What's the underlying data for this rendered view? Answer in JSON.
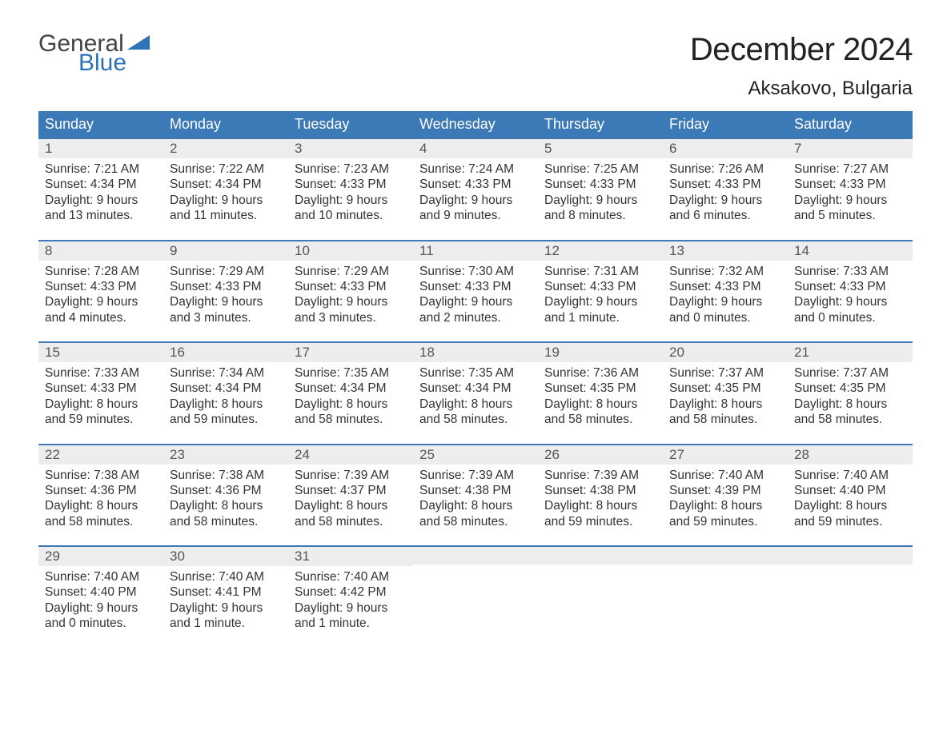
{
  "brand": {
    "word1": "General",
    "word2": "Blue",
    "accent_color": "#2e72b8"
  },
  "title": "December 2024",
  "location": "Aksakovo, Bulgaria",
  "colors": {
    "header_bg": "#3b79b7",
    "header_text": "#ffffff",
    "datebar_bg": "#ededed",
    "border": "#3b79b7",
    "body_text": "#333333"
  },
  "day_names": [
    "Sunday",
    "Monday",
    "Tuesday",
    "Wednesday",
    "Thursday",
    "Friday",
    "Saturday"
  ],
  "weeks": [
    [
      {
        "date": "1",
        "sunrise": "Sunrise: 7:21 AM",
        "sunset": "Sunset: 4:34 PM",
        "d1": "Daylight: 9 hours",
        "d2": "and 13 minutes."
      },
      {
        "date": "2",
        "sunrise": "Sunrise: 7:22 AM",
        "sunset": "Sunset: 4:34 PM",
        "d1": "Daylight: 9 hours",
        "d2": "and 11 minutes."
      },
      {
        "date": "3",
        "sunrise": "Sunrise: 7:23 AM",
        "sunset": "Sunset: 4:33 PM",
        "d1": "Daylight: 9 hours",
        "d2": "and 10 minutes."
      },
      {
        "date": "4",
        "sunrise": "Sunrise: 7:24 AM",
        "sunset": "Sunset: 4:33 PM",
        "d1": "Daylight: 9 hours",
        "d2": "and 9 minutes."
      },
      {
        "date": "5",
        "sunrise": "Sunrise: 7:25 AM",
        "sunset": "Sunset: 4:33 PM",
        "d1": "Daylight: 9 hours",
        "d2": "and 8 minutes."
      },
      {
        "date": "6",
        "sunrise": "Sunrise: 7:26 AM",
        "sunset": "Sunset: 4:33 PM",
        "d1": "Daylight: 9 hours",
        "d2": "and 6 minutes."
      },
      {
        "date": "7",
        "sunrise": "Sunrise: 7:27 AM",
        "sunset": "Sunset: 4:33 PM",
        "d1": "Daylight: 9 hours",
        "d2": "and 5 minutes."
      }
    ],
    [
      {
        "date": "8",
        "sunrise": "Sunrise: 7:28 AM",
        "sunset": "Sunset: 4:33 PM",
        "d1": "Daylight: 9 hours",
        "d2": "and 4 minutes."
      },
      {
        "date": "9",
        "sunrise": "Sunrise: 7:29 AM",
        "sunset": "Sunset: 4:33 PM",
        "d1": "Daylight: 9 hours",
        "d2": "and 3 minutes."
      },
      {
        "date": "10",
        "sunrise": "Sunrise: 7:29 AM",
        "sunset": "Sunset: 4:33 PM",
        "d1": "Daylight: 9 hours",
        "d2": "and 3 minutes."
      },
      {
        "date": "11",
        "sunrise": "Sunrise: 7:30 AM",
        "sunset": "Sunset: 4:33 PM",
        "d1": "Daylight: 9 hours",
        "d2": "and 2 minutes."
      },
      {
        "date": "12",
        "sunrise": "Sunrise: 7:31 AM",
        "sunset": "Sunset: 4:33 PM",
        "d1": "Daylight: 9 hours",
        "d2": "and 1 minute."
      },
      {
        "date": "13",
        "sunrise": "Sunrise: 7:32 AM",
        "sunset": "Sunset: 4:33 PM",
        "d1": "Daylight: 9 hours",
        "d2": "and 0 minutes."
      },
      {
        "date": "14",
        "sunrise": "Sunrise: 7:33 AM",
        "sunset": "Sunset: 4:33 PM",
        "d1": "Daylight: 9 hours",
        "d2": "and 0 minutes."
      }
    ],
    [
      {
        "date": "15",
        "sunrise": "Sunrise: 7:33 AM",
        "sunset": "Sunset: 4:33 PM",
        "d1": "Daylight: 8 hours",
        "d2": "and 59 minutes."
      },
      {
        "date": "16",
        "sunrise": "Sunrise: 7:34 AM",
        "sunset": "Sunset: 4:34 PM",
        "d1": "Daylight: 8 hours",
        "d2": "and 59 minutes."
      },
      {
        "date": "17",
        "sunrise": "Sunrise: 7:35 AM",
        "sunset": "Sunset: 4:34 PM",
        "d1": "Daylight: 8 hours",
        "d2": "and 58 minutes."
      },
      {
        "date": "18",
        "sunrise": "Sunrise: 7:35 AM",
        "sunset": "Sunset: 4:34 PM",
        "d1": "Daylight: 8 hours",
        "d2": "and 58 minutes."
      },
      {
        "date": "19",
        "sunrise": "Sunrise: 7:36 AM",
        "sunset": "Sunset: 4:35 PM",
        "d1": "Daylight: 8 hours",
        "d2": "and 58 minutes."
      },
      {
        "date": "20",
        "sunrise": "Sunrise: 7:37 AM",
        "sunset": "Sunset: 4:35 PM",
        "d1": "Daylight: 8 hours",
        "d2": "and 58 minutes."
      },
      {
        "date": "21",
        "sunrise": "Sunrise: 7:37 AM",
        "sunset": "Sunset: 4:35 PM",
        "d1": "Daylight: 8 hours",
        "d2": "and 58 minutes."
      }
    ],
    [
      {
        "date": "22",
        "sunrise": "Sunrise: 7:38 AM",
        "sunset": "Sunset: 4:36 PM",
        "d1": "Daylight: 8 hours",
        "d2": "and 58 minutes."
      },
      {
        "date": "23",
        "sunrise": "Sunrise: 7:38 AM",
        "sunset": "Sunset: 4:36 PM",
        "d1": "Daylight: 8 hours",
        "d2": "and 58 minutes."
      },
      {
        "date": "24",
        "sunrise": "Sunrise: 7:39 AM",
        "sunset": "Sunset: 4:37 PM",
        "d1": "Daylight: 8 hours",
        "d2": "and 58 minutes."
      },
      {
        "date": "25",
        "sunrise": "Sunrise: 7:39 AM",
        "sunset": "Sunset: 4:38 PM",
        "d1": "Daylight: 8 hours",
        "d2": "and 58 minutes."
      },
      {
        "date": "26",
        "sunrise": "Sunrise: 7:39 AM",
        "sunset": "Sunset: 4:38 PM",
        "d1": "Daylight: 8 hours",
        "d2": "and 59 minutes."
      },
      {
        "date": "27",
        "sunrise": "Sunrise: 7:40 AM",
        "sunset": "Sunset: 4:39 PM",
        "d1": "Daylight: 8 hours",
        "d2": "and 59 minutes."
      },
      {
        "date": "28",
        "sunrise": "Sunrise: 7:40 AM",
        "sunset": "Sunset: 4:40 PM",
        "d1": "Daylight: 8 hours",
        "d2": "and 59 minutes."
      }
    ],
    [
      {
        "date": "29",
        "sunrise": "Sunrise: 7:40 AM",
        "sunset": "Sunset: 4:40 PM",
        "d1": "Daylight: 9 hours",
        "d2": "and 0 minutes."
      },
      {
        "date": "30",
        "sunrise": "Sunrise: 7:40 AM",
        "sunset": "Sunset: 4:41 PM",
        "d1": "Daylight: 9 hours",
        "d2": "and 1 minute."
      },
      {
        "date": "31",
        "sunrise": "Sunrise: 7:40 AM",
        "sunset": "Sunset: 4:42 PM",
        "d1": "Daylight: 9 hours",
        "d2": "and 1 minute."
      },
      null,
      null,
      null,
      null
    ]
  ]
}
